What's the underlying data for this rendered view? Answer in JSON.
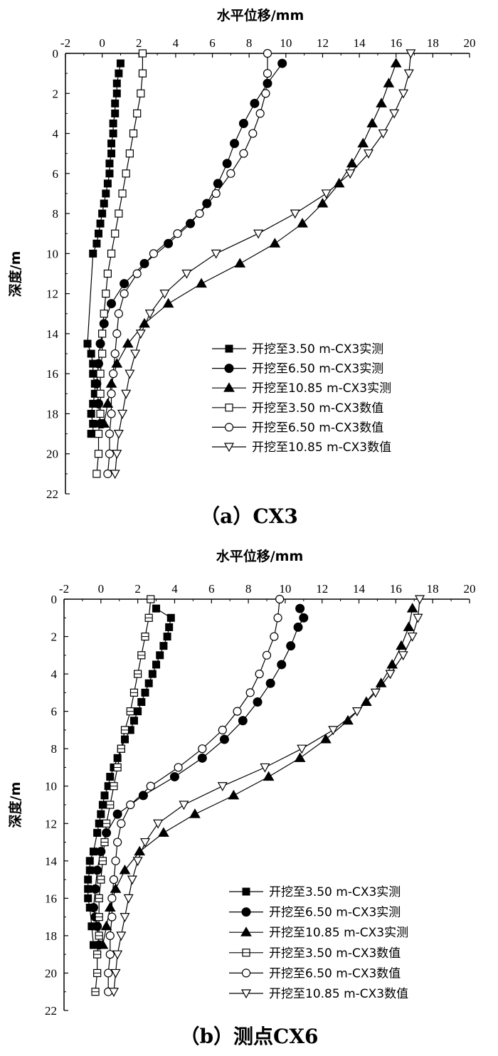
{
  "chart_data": [
    {
      "type": "line",
      "caption": "（a）CX3",
      "xlabel": "水平位移/mm",
      "ylabel": "深度/m",
      "xlim": [
        -2,
        20
      ],
      "ylim": [
        0,
        22
      ],
      "y_inverted": true,
      "x_axis_position": "top",
      "xticks": [
        -2,
        0,
        2,
        4,
        6,
        8,
        10,
        12,
        14,
        16,
        18,
        20
      ],
      "yticks": [
        0,
        2,
        4,
        6,
        8,
        10,
        12,
        14,
        16,
        18,
        20,
        22
      ],
      "legend_position": "bottom-right",
      "series": [
        {
          "name": "开挖至3.50 m-CX3实测",
          "marker": "square-filled",
          "x": [
            1.0,
            0.9,
            0.8,
            0.8,
            0.7,
            0.7,
            0.6,
            0.6,
            0.5,
            0.5,
            0.4,
            0.4,
            0.3,
            0.2,
            0.1,
            0.0,
            -0.1,
            -0.2,
            -0.3,
            -0.5,
            -0.8,
            -0.6,
            -0.5,
            -0.5,
            -0.4,
            -0.4,
            -0.5,
            -0.6,
            -0.5,
            -0.5,
            -0.6
          ],
          "y": [
            0.5,
            1.0,
            1.5,
            2.0,
            2.5,
            3.0,
            3.5,
            4.0,
            4.5,
            5.0,
            5.5,
            6.0,
            6.5,
            7.0,
            7.5,
            8.0,
            8.5,
            9.0,
            9.5,
            10.0,
            14.5,
            15.0,
            15.5,
            16.0,
            16.5,
            17.0,
            17.5,
            18.0,
            18.5,
            19.0,
            19.0
          ]
        },
        {
          "name": "开挖至6.50 m-CX3实测",
          "marker": "circle-filled",
          "x": [
            9.8,
            9.0,
            8.3,
            7.7,
            7.2,
            6.8,
            6.3,
            5.7,
            4.8,
            3.6,
            2.3,
            1.2,
            0.5,
            0.1,
            -0.1,
            -0.2,
            -0.3,
            -0.2,
            -0.1,
            0.0
          ],
          "y": [
            0.5,
            1.5,
            2.5,
            3.5,
            4.5,
            5.5,
            6.5,
            7.5,
            8.5,
            9.5,
            10.5,
            11.5,
            12.5,
            13.5,
            14.5,
            15.5,
            16.5,
            17.5,
            18.5,
            18.5
          ]
        },
        {
          "name": "开挖至10.85 m-CX3实测",
          "marker": "triangle-filled",
          "x": [
            16.0,
            15.6,
            15.2,
            14.7,
            14.2,
            13.6,
            12.9,
            12.0,
            10.9,
            9.4,
            7.5,
            5.4,
            3.6,
            2.3,
            1.4,
            0.8,
            0.5,
            0.3,
            0.1
          ],
          "y": [
            0.5,
            1.5,
            2.5,
            3.5,
            4.5,
            5.5,
            6.5,
            7.5,
            8.5,
            9.5,
            10.5,
            11.5,
            12.5,
            13.5,
            14.5,
            15.5,
            16.5,
            17.5,
            18.5
          ]
        },
        {
          "name": "开挖至3.50 m-CX3数值",
          "marker": "square-open",
          "x": [
            2.2,
            2.2,
            2.1,
            1.9,
            1.7,
            1.5,
            1.3,
            1.1,
            0.9,
            0.7,
            0.5,
            0.3,
            0.2,
            0.1,
            0.0,
            0.0,
            -0.1,
            -0.1,
            -0.1,
            -0.2,
            -0.2,
            -0.3
          ],
          "y": [
            0,
            1,
            2,
            3,
            4,
            5,
            6,
            7,
            8,
            9,
            10,
            11,
            12,
            13,
            14,
            15,
            16,
            17,
            18,
            19,
            20,
            21
          ]
        },
        {
          "name": "开挖至6.50 m-CX3数值",
          "marker": "circle-open",
          "x": [
            9.0,
            9.0,
            8.9,
            8.6,
            8.2,
            7.7,
            7.0,
            6.2,
            5.3,
            4.1,
            2.8,
            1.9,
            1.2,
            0.9,
            0.8,
            0.7,
            0.6,
            0.5,
            0.5,
            0.4,
            0.4,
            0.3
          ],
          "y": [
            0,
            1,
            2,
            3,
            4,
            5,
            6,
            7,
            8,
            9,
            10,
            11,
            12,
            13,
            14,
            15,
            16,
            17,
            18,
            19,
            20,
            21
          ]
        },
        {
          "name": "开挖至10.85 m-CX3数值",
          "marker": "triangle-down-open",
          "x": [
            16.8,
            16.7,
            16.4,
            15.9,
            15.3,
            14.5,
            13.5,
            12.2,
            10.5,
            8.5,
            6.2,
            4.6,
            3.4,
            2.6,
            2.1,
            1.8,
            1.5,
            1.3,
            1.1,
            0.9,
            0.8,
            0.7
          ],
          "y": [
            0,
            1,
            2,
            3,
            4,
            5,
            6,
            7,
            8,
            9,
            10,
            11,
            12,
            13,
            14,
            15,
            16,
            17,
            18,
            19,
            20,
            21
          ]
        }
      ]
    },
    {
      "type": "line",
      "caption": "（b）测点CX6",
      "xlabel": "水平位移/mm",
      "ylabel": "深度/m",
      "xlim": [
        -2,
        20
      ],
      "ylim": [
        0,
        22
      ],
      "y_inverted": true,
      "x_axis_position": "top",
      "xticks": [
        -2,
        0,
        2,
        4,
        6,
        8,
        10,
        12,
        14,
        16,
        18,
        20
      ],
      "yticks": [
        0,
        2,
        4,
        6,
        8,
        10,
        12,
        14,
        16,
        18,
        20,
        22
      ],
      "legend_position": "bottom-right",
      "series": [
        {
          "name": "开挖至3.50 m-CX3实测",
          "marker": "square-filled",
          "x": [
            3.0,
            3.8,
            3.7,
            3.6,
            3.4,
            3.2,
            3.0,
            2.8,
            2.6,
            2.4,
            2.2,
            2.0,
            1.8,
            1.6,
            1.3,
            1.1,
            0.9,
            0.7,
            0.5,
            0.4,
            0.2,
            0.1,
            0.0,
            -0.1,
            -0.2,
            -0.4,
            -0.6,
            -0.6,
            -0.7,
            -0.7,
            -0.7,
            -0.6,
            -0.5,
            -0.4
          ],
          "y": [
            0.5,
            1.0,
            1.5,
            2.0,
            2.5,
            3.0,
            3.5,
            4.0,
            4.5,
            5.0,
            5.5,
            6.0,
            6.5,
            7.0,
            7.5,
            8.0,
            8.5,
            9.0,
            9.5,
            10.0,
            10.5,
            11.0,
            11.5,
            12.0,
            12.5,
            13.5,
            14.0,
            14.5,
            15.0,
            15.5,
            16.0,
            16.5,
            17.5,
            18.5
          ]
        },
        {
          "name": "开挖至6.50 m-CX3实测",
          "marker": "circle-filled",
          "x": [
            10.8,
            11.0,
            10.7,
            10.3,
            9.8,
            9.2,
            8.5,
            7.7,
            6.7,
            5.5,
            4.0,
            2.3,
            0.9,
            0.3,
            0.0,
            -0.2,
            -0.3,
            -0.4,
            -0.3,
            -0.2,
            -0.1
          ],
          "y": [
            0.5,
            1.0,
            1.5,
            2.5,
            3.5,
            4.5,
            5.5,
            6.5,
            7.5,
            8.5,
            9.5,
            10.5,
            11.5,
            12.5,
            13.5,
            14.5,
            15.5,
            16.5,
            17.0,
            17.5,
            18.5
          ]
        },
        {
          "name": "开挖至10.85 m-CX3实测",
          "marker": "triangle-filled",
          "x": [
            16.9,
            16.7,
            16.3,
            15.8,
            15.2,
            14.4,
            13.4,
            12.2,
            10.8,
            9.1,
            7.2,
            5.1,
            3.4,
            2.1,
            1.3,
            0.8,
            0.5,
            0.3,
            0.1
          ],
          "y": [
            0.5,
            1.5,
            2.5,
            3.5,
            4.5,
            5.5,
            6.5,
            7.5,
            8.5,
            9.5,
            10.5,
            11.5,
            12.5,
            13.5,
            14.5,
            15.5,
            16.5,
            17.5,
            18.5
          ]
        },
        {
          "name": "开挖至3.50 m-CX3数值",
          "marker": "square-open-cross",
          "x": [
            2.7,
            2.6,
            2.4,
            2.2,
            2.0,
            1.8,
            1.6,
            1.3,
            1.1,
            0.9,
            0.7,
            0.5,
            0.3,
            0.2,
            0.1,
            0.0,
            -0.1,
            -0.1,
            -0.1,
            -0.2,
            -0.2,
            -0.3
          ],
          "y": [
            0,
            1,
            2,
            3,
            4,
            5,
            6,
            7,
            8,
            9,
            10,
            11,
            12,
            13,
            14,
            15,
            16,
            17,
            18,
            19,
            20,
            21
          ]
        },
        {
          "name": "开挖至6.50 m-CX3数值",
          "marker": "circle-open",
          "x": [
            9.7,
            9.6,
            9.4,
            9.0,
            8.6,
            8.1,
            7.4,
            6.6,
            5.5,
            4.2,
            2.7,
            1.6,
            1.1,
            0.9,
            0.8,
            0.7,
            0.6,
            0.6,
            0.5,
            0.5,
            0.4,
            0.4
          ],
          "y": [
            0,
            1,
            2,
            3,
            4,
            5,
            6,
            7,
            8,
            9,
            10,
            11,
            12,
            13,
            14,
            15,
            16,
            17,
            18,
            19,
            20,
            21
          ]
        },
        {
          "name": "开挖至10.85 m-CX3数值",
          "marker": "triangle-down-open",
          "x": [
            17.3,
            17.2,
            16.9,
            16.4,
            15.7,
            14.9,
            13.9,
            12.6,
            10.9,
            8.9,
            6.6,
            4.5,
            3.1,
            2.4,
            2.0,
            1.7,
            1.5,
            1.3,
            1.1,
            0.9,
            0.8,
            0.7
          ],
          "y": [
            0,
            1,
            2,
            3,
            4,
            5,
            6,
            7,
            8,
            9,
            10,
            11,
            12,
            13,
            14,
            15,
            16,
            17,
            18,
            19,
            20,
            21
          ]
        }
      ]
    }
  ]
}
